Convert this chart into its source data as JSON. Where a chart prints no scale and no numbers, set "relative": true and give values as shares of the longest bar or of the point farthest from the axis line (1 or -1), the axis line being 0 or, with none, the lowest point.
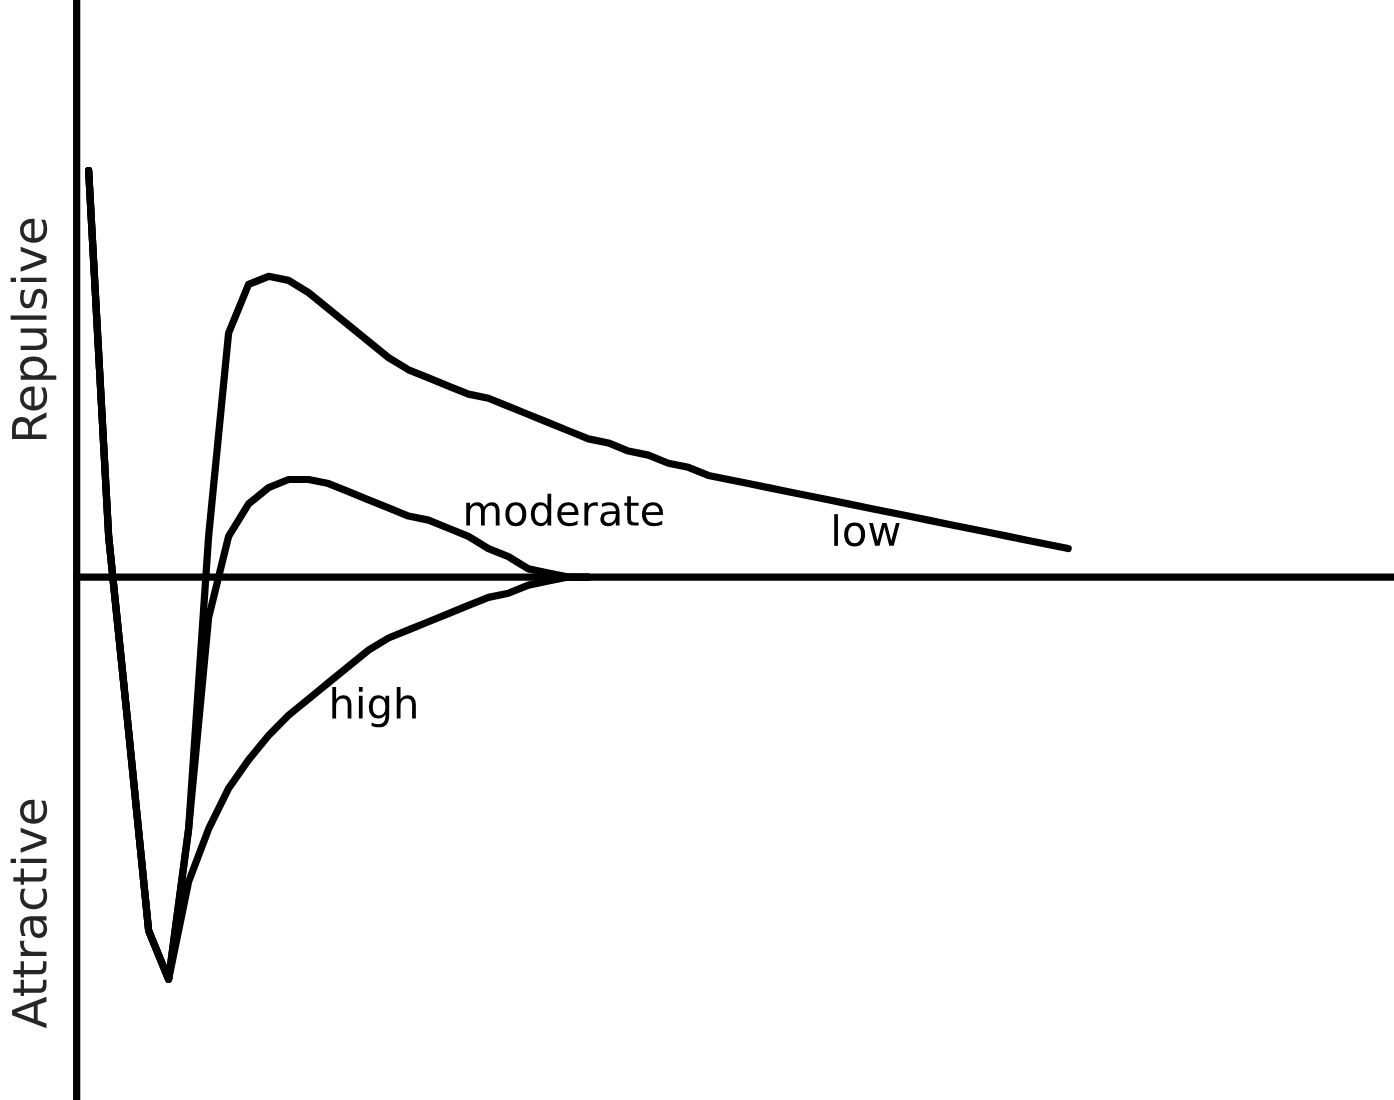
{
  "chart_data": {
    "type": "line",
    "relative": true,
    "marker": "none",
    "line_style": "solid",
    "annotations": [
      "Repulsive",
      "Attractive"
    ],
    "categories": [
      null,
      null,
      null,
      null,
      null,
      null,
      null,
      null,
      null,
      null,
      null,
      null,
      null,
      null,
      null,
      null,
      null,
      null,
      null,
      null,
      null,
      null,
      null,
      null,
      null,
      null,
      null,
      null,
      null,
      null,
      null,
      null,
      null,
      null,
      null,
      null,
      null,
      null,
      null,
      null,
      null,
      null,
      null,
      null,
      null,
      null,
      null,
      null,
      null,
      null
    ],
    "series": [
      {
        "name": "low",
        "color": "#000000",
        "values": [
          1.0,
          0.1,
          -0.38,
          -0.87,
          -0.99,
          -0.62,
          0.1,
          0.6,
          0.72,
          0.74,
          0.73,
          0.7,
          0.66,
          0.62,
          0.58,
          0.54,
          0.51,
          0.49,
          0.47,
          0.45,
          0.44,
          0.42,
          0.4,
          0.38,
          0.36,
          0.34,
          0.33,
          0.31,
          0.3,
          0.28,
          0.27,
          0.25,
          0.24,
          0.23,
          0.22,
          0.21,
          0.2,
          0.19,
          0.18,
          0.17,
          0.16,
          0.15,
          0.14,
          0.13,
          0.12,
          0.11,
          0.1,
          0.09,
          0.08,
          0.07
        ]
      },
      {
        "name": "moderate",
        "color": "#000000",
        "values": [
          1.0,
          0.1,
          -0.38,
          -0.87,
          -0.99,
          -0.62,
          -0.1,
          0.1,
          0.18,
          0.22,
          0.24,
          0.24,
          0.23,
          0.21,
          0.19,
          0.17,
          0.15,
          0.14,
          0.12,
          0.1,
          0.07,
          0.05,
          0.02,
          0.01,
          0,
          0,
          null,
          null,
          null,
          null,
          null,
          null,
          null,
          null,
          null,
          null,
          null,
          null,
          null,
          null,
          null,
          null,
          null,
          null,
          null,
          null,
          null,
          null,
          null,
          null
        ]
      },
      {
        "name": "high",
        "color": "#000000",
        "values": [
          1.0,
          0.1,
          -0.38,
          -0.87,
          -0.99,
          -0.75,
          -0.62,
          -0.52,
          -0.45,
          -0.39,
          -0.34,
          -0.3,
          -0.26,
          -0.22,
          -0.18,
          -0.15,
          -0.13,
          -0.11,
          -0.09,
          -0.07,
          -0.05,
          -0.04,
          -0.02,
          -0.01,
          0,
          0,
          null,
          null,
          null,
          null,
          null,
          null,
          null,
          null,
          null,
          null,
          null,
          null,
          null,
          null,
          null,
          null,
          null,
          null,
          null,
          null,
          null,
          null,
          null,
          null
        ]
      }
    ]
  }
}
